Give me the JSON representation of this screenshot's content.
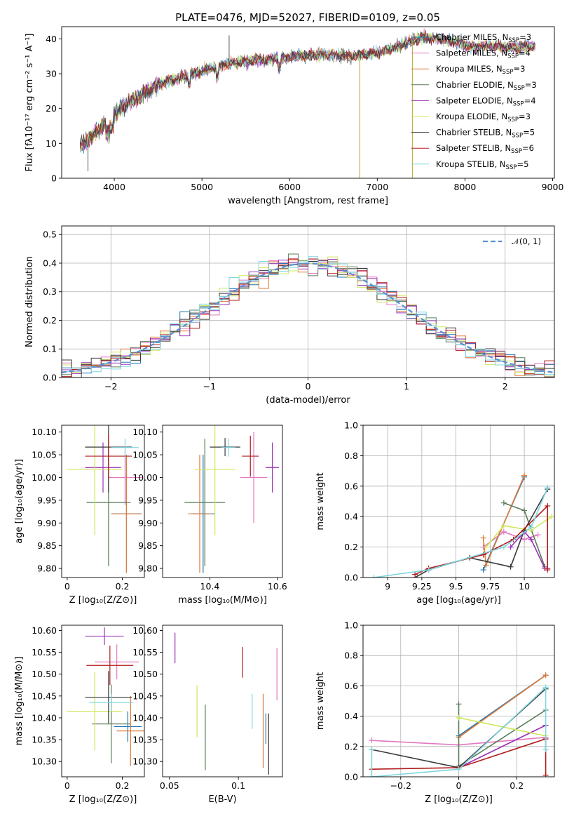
{
  "figure": {
    "title": "PLATE=0476, MJD=52027, FIBERID=0109, z=0.05"
  },
  "models": [
    {
      "key": "chab_miles",
      "label": "Chabrier MILES, N",
      "sub": "SSP",
      "nval": "=3",
      "color": "#1f77b4"
    },
    {
      "key": "salp_miles",
      "label": "Salpeter MILES, N",
      "sub": "SSP",
      "nval": "=4",
      "color": "#e377c2"
    },
    {
      "key": "krou_miles",
      "label": "Kroupa MILES, N",
      "sub": "SSP",
      "nval": "=3",
      "color": "#e07b39"
    },
    {
      "key": "chab_elodie",
      "label": "Chabrier ELODIE, N",
      "sub": "SSP",
      "nval": "=3",
      "color": "#5a7d5a"
    },
    {
      "key": "salp_elodie",
      "label": "Salpeter ELODIE, N",
      "sub": "SSP",
      "nval": "=4",
      "color": "#9b30b8"
    },
    {
      "key": "krou_elodie",
      "label": "Kroupa ELODIE, N",
      "sub": "SSP",
      "nval": "=3",
      "color": "#cde85a"
    },
    {
      "key": "chab_stelib",
      "label": "Chabrier STELIB, N",
      "sub": "SSP",
      "nval": "=5",
      "color": "#3a3a3a"
    },
    {
      "key": "salp_stelib",
      "label": "Salpeter STELIB, N",
      "sub": "SSP",
      "nval": "=6",
      "color": "#b01c1c"
    },
    {
      "key": "krou_stelib",
      "label": "Kroupa STELIB, N",
      "sub": "SSP",
      "nval": "=5",
      "color": "#7fd6e0"
    }
  ],
  "chart_data": [
    {
      "id": "spectrum",
      "type": "line",
      "xlabel": "wavelength [Angstrom, rest frame]",
      "ylabel": "Flux [fλ10⁻¹⁷ erg cm⁻² s⁻¹ A⁻¹]",
      "xlim": [
        3400,
        9020
      ],
      "ylim": [
        0,
        43.5
      ],
      "xticks": [
        4000,
        5000,
        6000,
        7000,
        8000,
        9000
      ],
      "yticks": [
        0,
        10,
        20,
        30,
        40
      ],
      "continuum_knots": [
        [
          3610,
          9
        ],
        [
          3700,
          11
        ],
        [
          3800,
          13.5
        ],
        [
          3950,
          17
        ],
        [
          4050,
          19.5
        ],
        [
          4200,
          22
        ],
        [
          4350,
          24.5
        ],
        [
          4500,
          27
        ],
        [
          4700,
          28.5
        ],
        [
          4900,
          30
        ],
        [
          5100,
          31.5
        ],
        [
          5300,
          33
        ],
        [
          5500,
          33.5
        ],
        [
          5700,
          34
        ],
        [
          5900,
          34.5
        ],
        [
          6100,
          35
        ],
        [
          6300,
          35.5
        ],
        [
          6500,
          35.5
        ],
        [
          6700,
          35
        ],
        [
          6900,
          35.5
        ],
        [
          7100,
          36.5
        ],
        [
          7300,
          38.5
        ],
        [
          7500,
          40.5
        ],
        [
          7700,
          40
        ],
        [
          7900,
          39
        ],
        [
          8100,
          37.5
        ],
        [
          8300,
          38
        ],
        [
          8500,
          37.5
        ],
        [
          8700,
          37.8
        ]
      ],
      "spikes": [
        {
          "x": 6800,
          "y": 0
        },
        {
          "x": 7400,
          "y": 0
        },
        {
          "x": 5310,
          "y": 41
        },
        {
          "x": 3700,
          "y": 2
        }
      ],
      "legend_position": "upper-right"
    },
    {
      "id": "residuals",
      "type": "line",
      "xlabel": "(data-model)/error",
      "ylabel": "Normed distribution",
      "xlim": [
        -2.5,
        2.5
      ],
      "ylim": [
        0,
        0.53
      ],
      "xticks": [
        -2,
        -1,
        0,
        1,
        2
      ],
      "yticks": [
        0.0,
        0.1,
        0.2,
        0.3,
        0.4,
        0.5
      ],
      "bin_width": 0.1,
      "reference_curve": "𝒩(0, 1)",
      "legend_position": "upper-right",
      "grid": true
    },
    {
      "id": "age_vs_Z",
      "type": "scatter",
      "xlabel": "Z [log₁₀(Z/Z⊙)]",
      "ylabel": "age  [log₁₀(age/yr)]",
      "xlim": [
        -0.02,
        0.28
      ],
      "ylim": [
        9.78,
        10.115
      ],
      "xticks": [
        0.0,
        0.2
      ],
      "yticks": [
        9.8,
        9.85,
        9.9,
        9.95,
        10.0,
        10.05,
        10.1
      ],
      "points": [
        {
          "m": "chab_miles",
          "x": 0.215,
          "xerr": 0.055,
          "y": 9.92,
          "yerr": 0.13
        },
        {
          "m": "salp_miles",
          "x": 0.21,
          "xerr": 0.06,
          "y": 10.0,
          "yerr": 0.06
        },
        {
          "m": "krou_miles",
          "x": 0.215,
          "xerr": 0.055,
          "y": 9.92,
          "yerr": 0.13
        },
        {
          "m": "chab_elodie",
          "x": 0.15,
          "xerr": 0.08,
          "y": 9.945,
          "yerr": 0.14
        },
        {
          "m": "salp_elodie",
          "x": 0.13,
          "xerr": 0.065,
          "y": 10.022,
          "yerr": 0.055
        },
        {
          "m": "krou_elodie",
          "x": 0.1,
          "xerr": 0.1,
          "y": 10.018,
          "yerr": 0.145
        },
        {
          "m": "chab_stelib",
          "x": 0.15,
          "xerr": 0.085,
          "y": 10.067,
          "yerr": 0.1
        },
        {
          "m": "salp_stelib",
          "x": 0.15,
          "xerr": 0.085,
          "y": 10.047,
          "yerr": 0.05
        },
        {
          "m": "krou_stelib",
          "x": 0.21,
          "xerr": 0.05,
          "y": 10.066,
          "yerr": 0.02
        }
      ]
    },
    {
      "id": "age_vs_mass",
      "type": "scatter",
      "xlabel": "mass [log₁₀(M/M⊙)]",
      "ylabel": "",
      "xlim": [
        10.26,
        10.615
      ],
      "ylim": [
        9.78,
        10.115
      ],
      "xticks": [
        10.4,
        10.6
      ],
      "yticks": [
        9.8,
        9.85,
        9.9,
        9.95,
        10.0,
        10.05,
        10.1
      ],
      "points": [
        {
          "m": "chab_miles",
          "x": 10.38,
          "xerr": 0.035,
          "y": 9.92,
          "yerr": 0.13
        },
        {
          "m": "salp_miles",
          "x": 10.53,
          "xerr": 0.04,
          "y": 10.0,
          "yerr": 0.1
        },
        {
          "m": "krou_miles",
          "x": 10.37,
          "xerr": 0.035,
          "y": 9.92,
          "yerr": 0.13
        },
        {
          "m": "chab_elodie",
          "x": 10.385,
          "xerr": 0.06,
          "y": 9.945,
          "yerr": 0.14
        },
        {
          "m": "salp_elodie",
          "x": 10.585,
          "xerr": 0.02,
          "y": 10.022,
          "yerr": 0.055
        },
        {
          "m": "krou_elodie",
          "x": 10.415,
          "xerr": 0.06,
          "y": 10.018,
          "yerr": 0.145
        },
        {
          "m": "chab_stelib",
          "x": 10.445,
          "xerr": 0.045,
          "y": 10.067,
          "yerr": 0.02
        },
        {
          "m": "salp_stelib",
          "x": 10.52,
          "xerr": 0.025,
          "y": 10.047,
          "yerr": 0.045
        },
        {
          "m": "krou_stelib",
          "x": 10.455,
          "xerr": 0.02,
          "y": 10.066,
          "yerr": 0.02
        }
      ]
    },
    {
      "id": "weight_vs_age",
      "type": "line",
      "xlabel": "age  [log₁₀(age/yr)]",
      "ylabel": "mass weight",
      "xlim": [
        8.82,
        10.22
      ],
      "ylim": [
        0,
        1
      ],
      "xticks": [
        9.0,
        9.25,
        9.5,
        9.75,
        10.0
      ],
      "yticks": [
        0.0,
        0.2,
        0.4,
        0.6,
        0.8,
        1.0
      ],
      "grid": true,
      "series": [
        {
          "m": "chab_miles",
          "x": [
            9.7,
            10.0
          ],
          "y": [
            0.05,
            0.66
          ]
        },
        {
          "m": "salp_miles",
          "x": [
            9.7,
            9.85,
            10.0,
            10.1
          ],
          "y": [
            0.2,
            0.3,
            0.25,
            0.28
          ]
        },
        {
          "m": "krou_miles",
          "x": [
            9.7,
            9.72,
            10.0
          ],
          "y": [
            0.26,
            0.08,
            0.67
          ]
        },
        {
          "m": "chab_elodie",
          "x": [
            9.85,
            10.0,
            10.15
          ],
          "y": [
            0.49,
            0.44,
            0.07
          ]
        },
        {
          "m": "salp_elodie",
          "x": [
            9.9,
            10.0,
            10.05,
            10.15
          ],
          "y": [
            0.2,
            0.3,
            0.25,
            0.06
          ]
        },
        {
          "m": "krou_elodie",
          "x": [
            9.72,
            9.85,
            10.05,
            10.2
          ],
          "y": [
            0.2,
            0.34,
            0.31,
            0.4
          ]
        },
        {
          "m": "chab_stelib",
          "x": [
            9.2,
            9.3,
            9.6,
            9.9,
            10.0,
            10.17
          ],
          "y": [
            0.0,
            0.05,
            0.13,
            0.07,
            0.31,
            0.58
          ]
        },
        {
          "m": "salp_stelib",
          "x": [
            9.2,
            9.3,
            9.7,
            9.92,
            10.17,
            10.17,
            10.17
          ],
          "y": [
            0.02,
            0.06,
            0.15,
            0.25,
            0.47,
            0.06,
            0.05
          ]
        },
        {
          "m": "krou_stelib",
          "x": [
            8.9,
            9.3,
            9.85,
            10.05,
            10.17
          ],
          "y": [
            0.0,
            0.05,
            0.2,
            0.33,
            0.59
          ]
        }
      ]
    },
    {
      "id": "mass_vs_Z",
      "type": "scatter",
      "xlabel": "Z [log₁₀(Z/Z⊙)]",
      "ylabel": "mass [log₁₀(M/M⊙)]",
      "xlim": [
        -0.02,
        0.28
      ],
      "ylim": [
        10.265,
        10.612
      ],
      "xticks": [
        0.0,
        0.2
      ],
      "yticks": [
        10.3,
        10.35,
        10.4,
        10.45,
        10.5,
        10.55,
        10.6
      ],
      "points": [
        {
          "m": "chab_miles",
          "x": 0.22,
          "xerr": 0.05,
          "y": 10.38,
          "yerr": 0.035
        },
        {
          "m": "salp_miles",
          "x": 0.18,
          "xerr": 0.08,
          "y": 10.528,
          "yerr": 0.04
        },
        {
          "m": "krou_miles",
          "x": 0.23,
          "xerr": 0.05,
          "y": 10.37,
          "yerr": 0.08
        },
        {
          "m": "chab_elodie",
          "x": 0.16,
          "xerr": 0.07,
          "y": 10.386,
          "yerr": 0.09
        },
        {
          "m": "salp_elodie",
          "x": 0.135,
          "xerr": 0.07,
          "y": 10.587,
          "yerr": 0.02
        },
        {
          "m": "krou_elodie",
          "x": 0.1,
          "xerr": 0.1,
          "y": 10.415,
          "yerr": 0.09
        },
        {
          "m": "chab_stelib",
          "x": 0.15,
          "xerr": 0.085,
          "y": 10.447,
          "yerr": 0.06
        },
        {
          "m": "salp_stelib",
          "x": 0.155,
          "xerr": 0.085,
          "y": 10.52,
          "yerr": 0.045
        },
        {
          "m": "krou_stelib",
          "x": 0.16,
          "xerr": 0.08,
          "y": 10.435,
          "yerr": 0.02
        }
      ]
    },
    {
      "id": "mass_vs_ebv",
      "type": "scatter",
      "xlabel": "E(B-V)",
      "ylabel": "",
      "xlim": [
        0.045,
        0.132
      ],
      "ylim": [
        10.265,
        10.612
      ],
      "xticks": [
        0.05,
        0.1
      ],
      "yticks": [
        10.3,
        10.35,
        10.4,
        10.45,
        10.5,
        10.55,
        10.6
      ],
      "points": [
        {
          "m": "chab_miles",
          "x": 0.12,
          "xerr": 0,
          "y": 10.375,
          "yerr": 0.035
        },
        {
          "m": "salp_miles",
          "x": 0.128,
          "xerr": 0,
          "y": 10.5,
          "yerr": 0.06
        },
        {
          "m": "krou_miles",
          "x": 0.118,
          "xerr": 0,
          "y": 10.37,
          "yerr": 0.085
        },
        {
          "m": "chab_elodie",
          "x": 0.076,
          "xerr": 0,
          "y": 10.355,
          "yerr": 0.075
        },
        {
          "m": "salp_elodie",
          "x": 0.054,
          "xerr": 0,
          "y": 10.56,
          "yerr": 0.035
        },
        {
          "m": "krou_elodie",
          "x": 0.07,
          "xerr": 0,
          "y": 10.415,
          "yerr": 0.06
        },
        {
          "m": "chab_stelib",
          "x": 0.122,
          "xerr": 0,
          "y": 10.34,
          "yerr": 0.07
        },
        {
          "m": "salp_stelib",
          "x": 0.103,
          "xerr": 0,
          "y": 10.527,
          "yerr": 0.035
        },
        {
          "m": "krou_stelib",
          "x": 0.11,
          "xerr": 0,
          "y": 10.415,
          "yerr": 0.04
        }
      ]
    },
    {
      "id": "weight_vs_Z",
      "type": "line",
      "xlabel": "Z [log₁₀(Z/Z⊙)]",
      "ylabel": "mass weight",
      "xlim": [
        -0.33,
        0.33
      ],
      "ylim": [
        0,
        1
      ],
      "xticks": [
        -0.2,
        0.0,
        0.2
      ],
      "yticks": [
        0.0,
        0.2,
        0.4,
        0.6,
        0.8,
        1.0
      ],
      "grid": true,
      "series": [
        {
          "m": "chab_miles",
          "x": [
            0.0,
            0.3
          ],
          "y": [
            0.27,
            0.67
          ]
        },
        {
          "m": "salp_miles",
          "x": [
            -0.3,
            0.0,
            0.3
          ],
          "y": [
            0.24,
            0.21,
            0.26
          ]
        },
        {
          "m": "krou_miles",
          "x": [
            0.0,
            0.3
          ],
          "y": [
            0.26,
            0.67
          ]
        },
        {
          "m": "chab_elodie",
          "x": [
            0.0,
            0.0,
            0.3
          ],
          "y": [
            0.48,
            0.07,
            0.44
          ]
        },
        {
          "m": "salp_elodie",
          "x": [
            0.0,
            0.3
          ],
          "y": [
            0.06,
            0.34
          ]
        },
        {
          "m": "krou_elodie",
          "x": [
            0.0,
            0.3
          ],
          "y": [
            0.39,
            0.27
          ]
        },
        {
          "m": "chab_stelib",
          "x": [
            -0.3,
            0.0,
            0.3
          ],
          "y": [
            0.18,
            0.06,
            0.58
          ]
        },
        {
          "m": "salp_stelib",
          "x": [
            -0.3,
            0.0,
            0.3,
            0.3
          ],
          "y": [
            0.05,
            0.06,
            0.25,
            0.01
          ]
        },
        {
          "m": "krou_stelib",
          "x": [
            -0.3,
            -0.3,
            0.0,
            0.3,
            0.3
          ],
          "y": [
            0.18,
            0.0,
            0.05,
            0.59,
            0.18
          ]
        }
      ]
    }
  ]
}
